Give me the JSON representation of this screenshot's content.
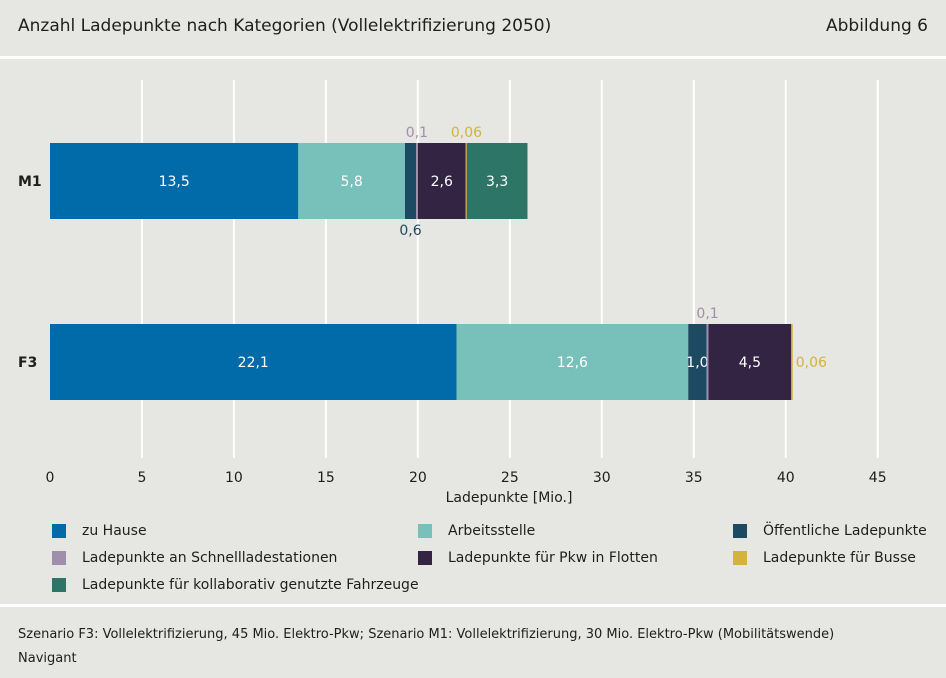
{
  "header": {
    "title": "Anzahl Ladepunkte nach Kategorien (Vollelektrifizierung 2050)",
    "figure": "Abbildung 6"
  },
  "chart_data": {
    "type": "bar",
    "orientation": "horizontal-stacked",
    "title": "Anzahl Ladepunkte nach Kategorien (Vollelektrifizierung 2050)",
    "xlabel": "Ladepunkte [Mio.]",
    "xlim": [
      0,
      47.3
    ],
    "xticks": [
      "0",
      "5",
      "10",
      "15",
      "20",
      "25",
      "30",
      "35",
      "40",
      "45"
    ],
    "grid": true,
    "categories": [
      "M1",
      "F3"
    ],
    "series": [
      {
        "name": "zu Hause",
        "color": "#006ba8",
        "values": [
          13.5,
          22.1
        ],
        "labels": [
          "13,5",
          "22,1"
        ],
        "label_pos": [
          "inside",
          "inside"
        ]
      },
      {
        "name": "Arbeitsstelle",
        "color": "#78c1bb",
        "values": [
          5.8,
          12.6
        ],
        "labels": [
          "5,8",
          "12,6"
        ],
        "label_pos": [
          "inside",
          "inside"
        ]
      },
      {
        "name": "Öffentliche Ladepunkte",
        "color": "#1c4a62",
        "values": [
          0.6,
          1.0
        ],
        "labels": [
          "0,6",
          "1,0"
        ],
        "label_pos": [
          "below",
          "inside"
        ]
      },
      {
        "name": "Ladepunkte an Schnellladestationen",
        "color": "#a08fac",
        "values": [
          0.1,
          0.1
        ],
        "labels": [
          "0,1",
          "0,1"
        ],
        "label_pos": [
          "above",
          "above"
        ]
      },
      {
        "name": "Ladepunkte für Pkw in Flotten",
        "color": "#322442",
        "values": [
          2.6,
          4.5
        ],
        "labels": [
          "2,6",
          "4,5"
        ],
        "label_pos": [
          "inside",
          "inside"
        ]
      },
      {
        "name": "Ladepunkte für Busse",
        "color": "#d4b23e",
        "values": [
          0.06,
          0.06
        ],
        "labels": [
          "0,06",
          "0,06"
        ],
        "label_pos": [
          "above",
          "right"
        ]
      },
      {
        "name": "Ladepunkte für kollaborativ genutzte Fahrzeuge",
        "color": "#2d7566",
        "values": [
          3.3,
          0
        ],
        "labels": [
          "3,3",
          ""
        ],
        "label_pos": [
          "inside",
          "none"
        ]
      }
    ],
    "legend": "bottom"
  },
  "footer": {
    "note": "Szenario F3: Vollelektrifizierung, 45 Mio. Elektro-Pkw; Szenario M1: Vollelektrifizierung, 30 Mio. Elektro-Pkw (Mobilitätswende)",
    "source": "Navigant"
  }
}
